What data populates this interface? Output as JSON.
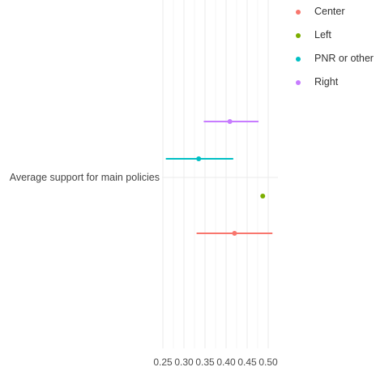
{
  "chart_data": {
    "type": "scatter",
    "y_category": "Average support for main policies",
    "xlim": [
      0.2,
      0.55
    ],
    "x_ticks": [
      0.25,
      0.3,
      0.35,
      0.4,
      0.45,
      0.5
    ],
    "x_tick_labels": [
      "0.25",
      "0.30",
      "0.35",
      "0.40",
      "0.45",
      "0.50"
    ],
    "grid": true,
    "legend_position": "right",
    "series": [
      {
        "name": "Center",
        "color": "#F8766D",
        "estimate": 0.42,
        "ci": [
          0.33,
          0.51
        ]
      },
      {
        "name": "Left",
        "color": "#7CAE00",
        "estimate": 0.487,
        "ci": [
          0.487,
          0.487
        ]
      },
      {
        "name": "PNR or other",
        "color": "#00BFC4",
        "estimate": 0.335,
        "ci": [
          0.257,
          0.417
        ]
      },
      {
        "name": "Right",
        "color": "#C77CFF",
        "estimate": 0.409,
        "ci": [
          0.347,
          0.477
        ]
      }
    ]
  }
}
